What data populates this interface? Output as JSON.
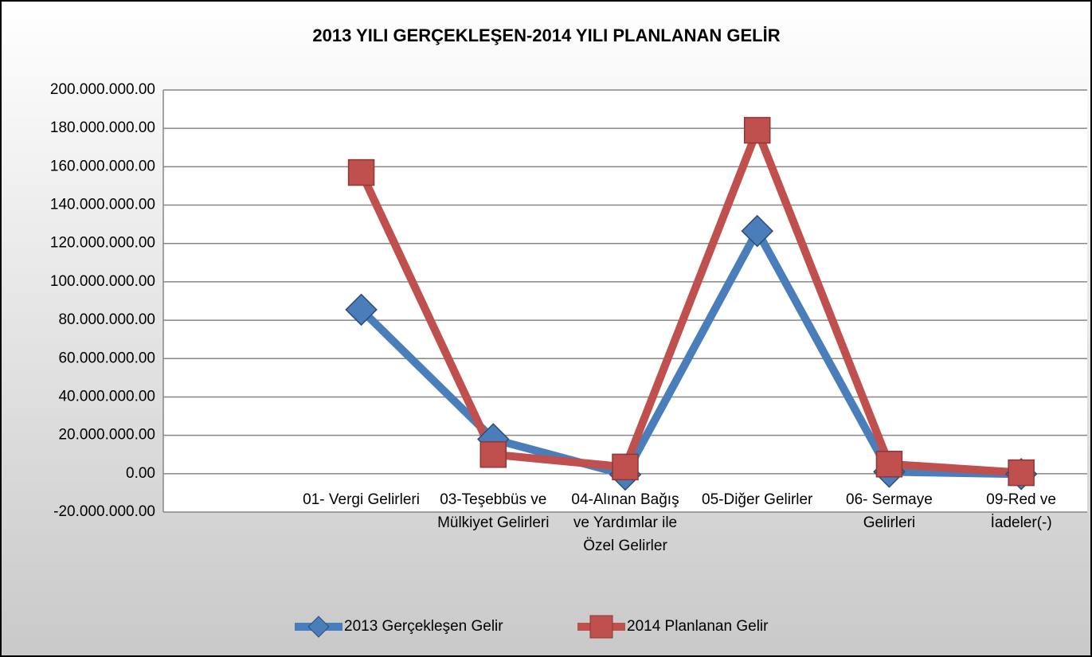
{
  "chart_data": {
    "type": "line",
    "title": "2013 YILI GERÇEKLEŞEN-2014 YILI PLANLANAN GELİR",
    "categories": [
      null,
      "01- Vergi Gelirleri",
      "03-Teşebbüs ve Mülkiyet Gelirleri",
      "04-Alınan Bağış  ve Yardımlar ile Özel Gelirler",
      "05-Diğer Gelirler",
      "06- Sermaye Gelirleri",
      "09-Red ve İadeler(-)"
    ],
    "series": [
      {
        "name": "2013 Gerçekleşen Gelir",
        "color": "#4a7ebb",
        "marker": "diamond",
        "values": [
          null,
          85500000,
          18000000,
          -500000,
          126500000,
          1000000,
          -200000
        ]
      },
      {
        "name": "2014 Planlanan Gelir",
        "color": "#c0504d",
        "marker": "square",
        "values": [
          null,
          157000000,
          10000000,
          3500000,
          179000000,
          5000000,
          500000
        ]
      }
    ],
    "ylim": [
      -20000000,
      200000000
    ],
    "yticks": [
      {
        "value": -20000000,
        "label": "-20.000.000.00"
      },
      {
        "value": 0,
        "label": "0.00"
      },
      {
        "value": 20000000,
        "label": "20.000.000.00"
      },
      {
        "value": 40000000,
        "label": "40.000.000.00"
      },
      {
        "value": 60000000,
        "label": "60.000.000.00"
      },
      {
        "value": 80000000,
        "label": "80.000.000.00"
      },
      {
        "value": 100000000,
        "label": "100.000.000.00"
      },
      {
        "value": 120000000,
        "label": "120.000.000.00"
      },
      {
        "value": 140000000,
        "label": "140.000.000.00"
      },
      {
        "value": 160000000,
        "label": "160.000.000.00"
      },
      {
        "value": 180000000,
        "label": "180.000.000.00"
      },
      {
        "value": 200000000,
        "label": "200.000.000.00"
      }
    ],
    "grid": true,
    "legend": "bottom"
  }
}
